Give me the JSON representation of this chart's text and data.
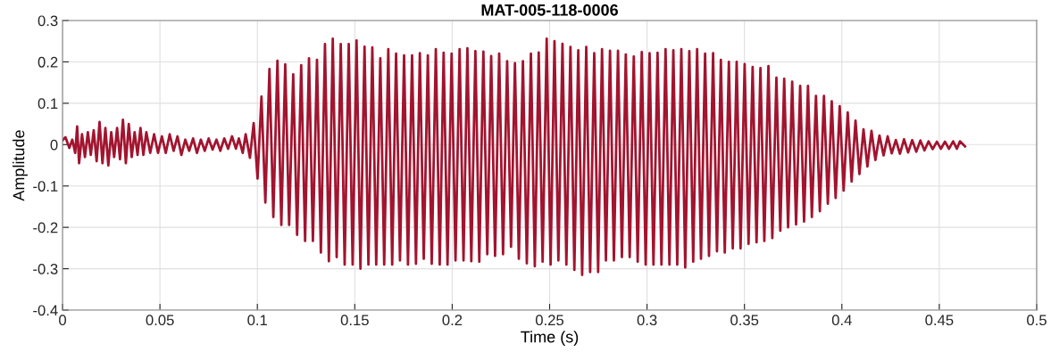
{
  "chart_data": {
    "type": "line",
    "title": "MAT-005-118-0006",
    "xlabel": "Time (s)",
    "ylabel": "Amplitude",
    "xlim": [
      0,
      0.5
    ],
    "xticks": [
      0,
      0.05,
      0.1,
      0.15,
      0.2,
      0.25,
      0.3,
      0.35,
      0.4,
      0.45,
      0.5
    ],
    "ylim": [
      -0.4,
      0.3
    ],
    "yticks": [
      -0.4,
      -0.3,
      -0.2,
      -0.1,
      0,
      0.1,
      0.2,
      0.3
    ],
    "grid": true,
    "marker": "none",
    "line_style": "solid",
    "series": [
      {
        "color": "#a2142f",
        "x": [
          0.0,
          0.0015,
          0.0035,
          0.005,
          0.0065,
          0.0075,
          0.0085,
          0.01,
          0.0115,
          0.013,
          0.0145,
          0.016,
          0.0175,
          0.019,
          0.0205,
          0.022,
          0.0235,
          0.025,
          0.0265,
          0.028,
          0.0295,
          0.031,
          0.0325,
          0.034,
          0.0355,
          0.037,
          0.0385,
          0.04,
          0.0415,
          0.043,
          0.045,
          0.047,
          0.049,
          0.051,
          0.053,
          0.055,
          0.057,
          0.059,
          0.061,
          0.063,
          0.065,
          0.067,
          0.069,
          0.071,
          0.073,
          0.075,
          0.077,
          0.079,
          0.081,
          0.083,
          0.085,
          0.087,
          0.089,
          0.0905,
          0.0925,
          0.094,
          0.0962,
          0.0981,
          0.1001,
          0.1021,
          0.1041,
          0.1062,
          0.1082,
          0.1103,
          0.1123,
          0.1143,
          0.1163,
          0.1184,
          0.1204,
          0.1225,
          0.1245,
          0.1265,
          0.1285,
          0.1306,
          0.1326,
          0.1347,
          0.1367,
          0.1387,
          0.1407,
          0.1428,
          0.1448,
          0.1469,
          0.1489,
          0.1509,
          0.1529,
          0.155,
          0.157,
          0.159,
          0.161,
          0.1631,
          0.1651,
          0.1672,
          0.1692,
          0.1712,
          0.1732,
          0.1753,
          0.1773,
          0.1794,
          0.1814,
          0.1834,
          0.1854,
          0.1875,
          0.1895,
          0.1916,
          0.1936,
          0.1956,
          0.1976,
          0.1997,
          0.2017,
          0.2038,
          0.2058,
          0.2078,
          0.2098,
          0.2119,
          0.2139,
          0.216,
          0.218,
          0.22,
          0.222,
          0.2241,
          0.2261,
          0.2282,
          0.2302,
          0.2322,
          0.2342,
          0.2363,
          0.2383,
          0.2404,
          0.2424,
          0.2444,
          0.2464,
          0.2485,
          0.2505,
          0.2525,
          0.2545,
          0.2566,
          0.2586,
          0.2607,
          0.2627,
          0.2647,
          0.2667,
          0.2688,
          0.2708,
          0.2729,
          0.2749,
          0.2769,
          0.2789,
          0.281,
          0.283,
          0.2851,
          0.2871,
          0.2891,
          0.2911,
          0.2932,
          0.2952,
          0.2973,
          0.2993,
          0.3013,
          0.3033,
          0.3054,
          0.3074,
          0.3095,
          0.3115,
          0.3135,
          0.3155,
          0.3176,
          0.3196,
          0.3217,
          0.3237,
          0.3257,
          0.3277,
          0.3298,
          0.3318,
          0.3339,
          0.3359,
          0.3379,
          0.3399,
          0.342,
          0.344,
          0.346,
          0.348,
          0.3501,
          0.3521,
          0.3542,
          0.3562,
          0.3582,
          0.3602,
          0.3623,
          0.3643,
          0.3664,
          0.3684,
          0.3704,
          0.3724,
          0.3745,
          0.3765,
          0.3786,
          0.3806,
          0.3826,
          0.3846,
          0.3867,
          0.3887,
          0.3908,
          0.3928,
          0.3948,
          0.3968,
          0.3989,
          0.4009,
          0.403,
          0.405,
          0.407,
          0.409,
          0.4111,
          0.4131,
          0.4152,
          0.4172,
          0.4193,
          0.4214,
          0.4235,
          0.4256,
          0.4277,
          0.4298,
          0.4319,
          0.434,
          0.4361,
          0.4382,
          0.4403,
          0.4424,
          0.4445,
          0.4466,
          0.4488,
          0.4508,
          0.4529,
          0.455,
          0.4571,
          0.459,
          0.4606,
          0.4632
        ],
        "values": [
          0.01,
          0.018,
          -0.008,
          0.012,
          -0.02,
          0.044,
          -0.045,
          0.025,
          -0.03,
          0.03,
          -0.025,
          0.035,
          -0.04,
          0.055,
          -0.045,
          0.04,
          -0.05,
          0.03,
          -0.03,
          0.04,
          -0.035,
          0.06,
          -0.045,
          0.05,
          -0.03,
          0.03,
          -0.025,
          0.04,
          -0.025,
          0.03,
          -0.02,
          0.025,
          -0.02,
          0.02,
          -0.02,
          0.025,
          -0.015,
          0.02,
          -0.025,
          0.012,
          -0.015,
          0.015,
          -0.02,
          0.012,
          -0.015,
          0.015,
          -0.012,
          0.012,
          -0.015,
          0.015,
          -0.01,
          0.02,
          -0.01,
          0.015,
          -0.02,
          0.025,
          -0.032,
          0.052,
          -0.082,
          0.116,
          -0.14,
          0.183,
          -0.175,
          0.203,
          -0.194,
          0.194,
          -0.194,
          0.17,
          -0.218,
          0.192,
          -0.233,
          0.209,
          -0.233,
          0.205,
          -0.261,
          0.243,
          -0.282,
          0.256,
          -0.272,
          0.243,
          -0.29,
          0.243,
          -0.29,
          0.252,
          -0.3,
          0.237,
          -0.29,
          0.235,
          -0.29,
          0.209,
          -0.29,
          0.231,
          -0.29,
          0.22,
          -0.28,
          0.216,
          -0.29,
          0.216,
          -0.288,
          0.221,
          -0.276,
          0.216,
          -0.288,
          0.231,
          -0.29,
          0.222,
          -0.29,
          0.22,
          -0.28,
          0.231,
          -0.28,
          0.233,
          -0.282,
          0.226,
          -0.283,
          0.225,
          -0.265,
          0.214,
          -0.269,
          0.22,
          -0.265,
          0.202,
          -0.247,
          0.197,
          -0.276,
          0.202,
          -0.287,
          0.22,
          -0.294,
          0.223,
          -0.283,
          0.256,
          -0.29,
          0.25,
          -0.28,
          0.244,
          -0.29,
          0.236,
          -0.303,
          0.228,
          -0.315,
          0.236,
          -0.308,
          0.221,
          -0.308,
          0.231,
          -0.28,
          0.227,
          -0.28,
          0.227,
          -0.272,
          0.218,
          -0.272,
          0.213,
          -0.283,
          0.224,
          -0.29,
          0.221,
          -0.29,
          0.222,
          -0.29,
          0.231,
          -0.29,
          0.228,
          -0.29,
          0.231,
          -0.297,
          0.226,
          -0.283,
          0.231,
          -0.276,
          0.22,
          -0.269,
          0.221,
          -0.258,
          0.205,
          -0.261,
          0.2,
          -0.251,
          0.2,
          -0.251,
          0.195,
          -0.24,
          0.188,
          -0.236,
          0.185,
          -0.233,
          0.19,
          -0.226,
          0.162,
          -0.208,
          0.159,
          -0.2,
          0.152,
          -0.193,
          0.142,
          -0.186,
          0.142,
          -0.175,
          0.118,
          -0.161,
          0.118,
          -0.143,
          0.105,
          -0.129,
          0.093,
          -0.111,
          0.078,
          -0.089,
          0.058,
          -0.071,
          0.037,
          -0.053,
          0.033,
          -0.037,
          0.022,
          -0.026,
          0.02,
          -0.021,
          0.011,
          -0.022,
          0.013,
          -0.019,
          0.011,
          -0.017,
          0.01,
          -0.014,
          0.008,
          -0.011,
          0.007,
          -0.01,
          0.007,
          -0.01,
          0.008,
          -0.01,
          0.008,
          -0.004
        ]
      }
    ]
  }
}
